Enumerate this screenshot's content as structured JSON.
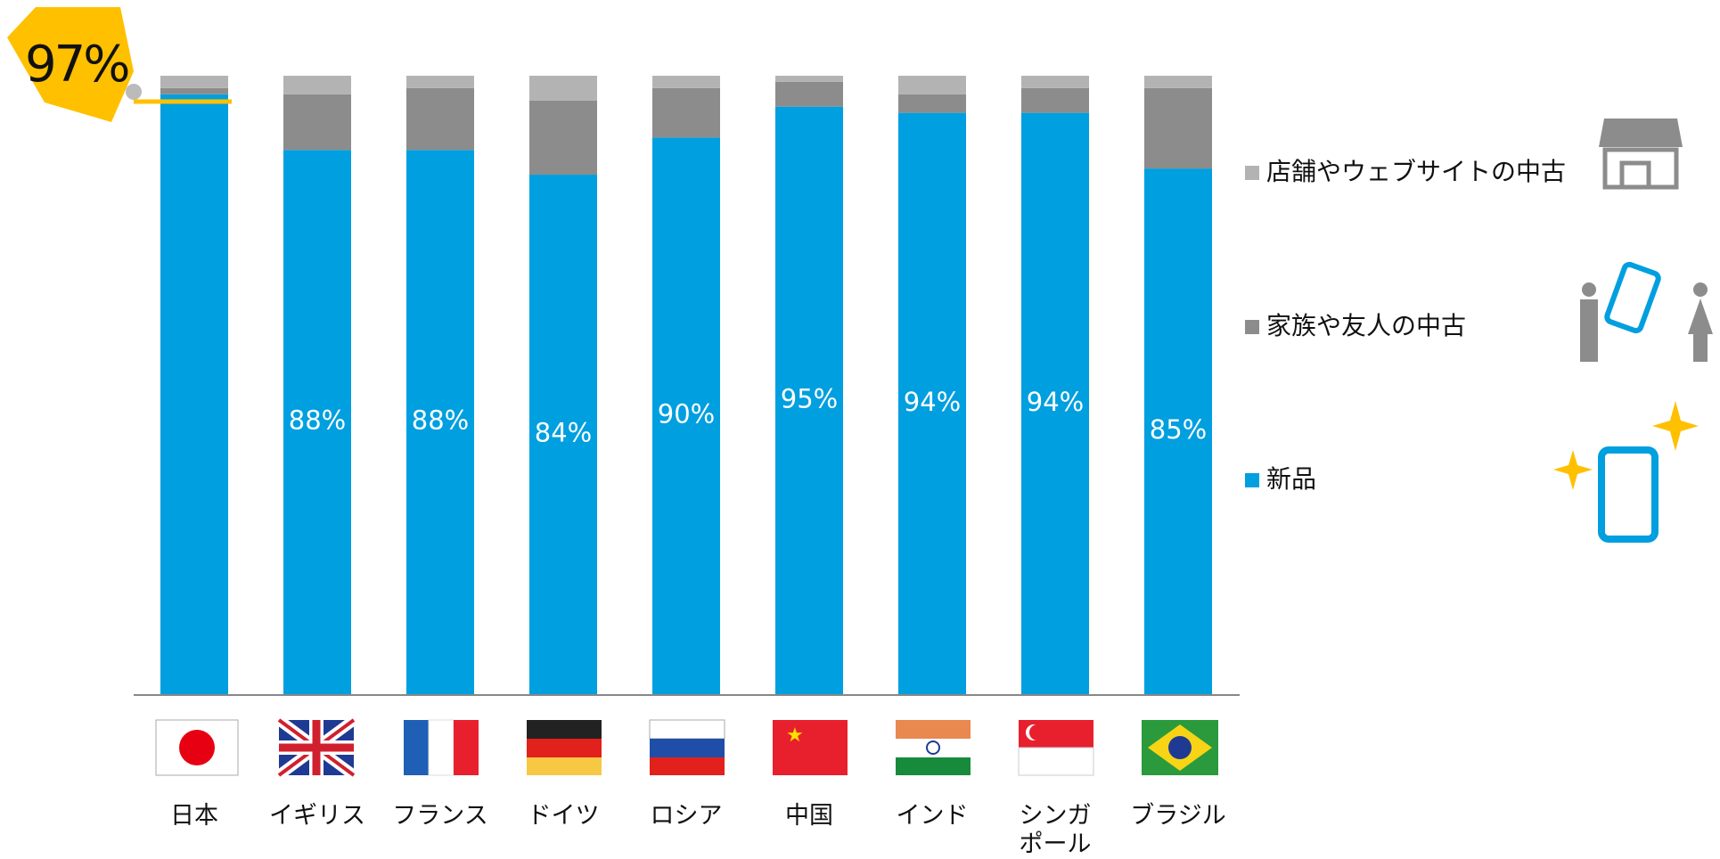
{
  "chart_data": {
    "type": "stacked_bar",
    "categories": [
      "日本",
      "イギリス",
      "フランス",
      "ドイツ",
      "ロシア",
      "中国",
      "インド",
      "シンガポール",
      "ブラジル"
    ],
    "series": [
      {
        "name": "新品",
        "color": "#009fdf",
        "values": [
          97,
          88,
          88,
          84,
          90,
          95,
          94,
          94,
          85
        ],
        "value_labels": [
          "97%",
          "88%",
          "88%",
          "84%",
          "90%",
          "95%",
          "94%",
          "94%",
          "85%"
        ]
      },
      {
        "name": "家族や友人の中古",
        "color": "#8c8c8c",
        "values": [
          1,
          9,
          10,
          12,
          8,
          4,
          3,
          4,
          13
        ]
      },
      {
        "name": "店舗やウェブサイトの中古",
        "color": "#b3b3b3",
        "values": [
          2,
          3,
          2,
          4,
          2,
          1,
          3,
          2,
          2
        ]
      }
    ],
    "ylim": [
      0,
      100
    ]
  }
}
